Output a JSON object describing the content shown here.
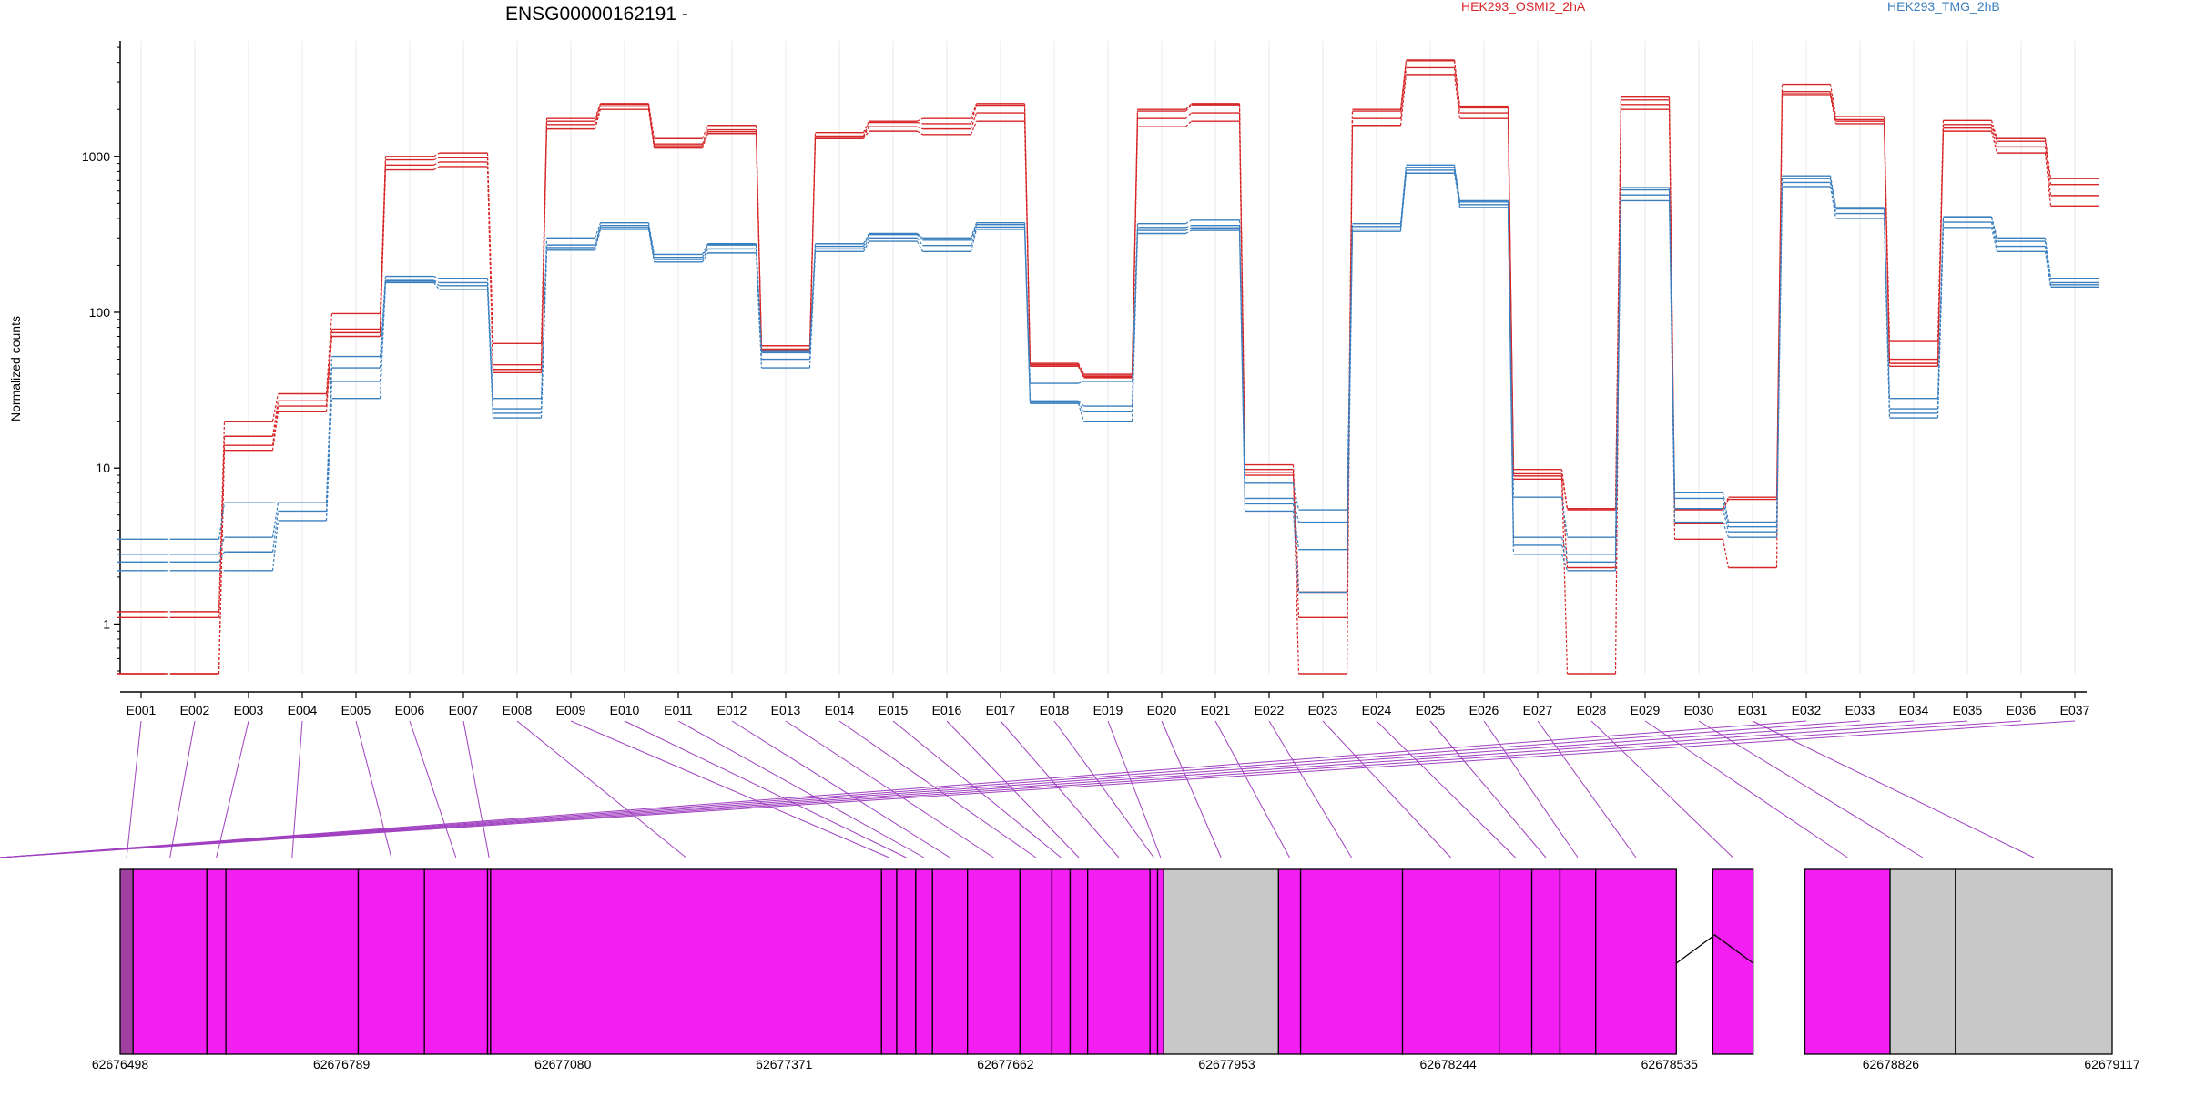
{
  "chart_data": {
    "type": "line",
    "title": "ENSG00000162191 -",
    "ylabel": "Normalized counts",
    "yscale": "log",
    "y_ticks": [
      1,
      10,
      100,
      1000
    ],
    "y_tick_labels": [
      "1",
      "10",
      "100",
      "1000"
    ],
    "ylim": [
      0.48,
      5500
    ],
    "categories": [
      "E001",
      "E002",
      "E003",
      "E004",
      "E005",
      "E006",
      "E007",
      "E008",
      "E009",
      "E010",
      "E011",
      "E012",
      "E013",
      "E014",
      "E015",
      "E016",
      "E017",
      "E018",
      "E019",
      "E020",
      "E021",
      "E022",
      "E023",
      "E024",
      "E025",
      "E026",
      "E027",
      "E028",
      "E029",
      "E030",
      "E031",
      "E032",
      "E033",
      "E034",
      "E035",
      "E036",
      "E037"
    ],
    "legend": [
      {
        "label": "HEK293_OSMI2_2hA",
        "color": "#d62728",
        "position": "top-center"
      },
      {
        "label": "HEK293_TMG_2hB",
        "color": "#3a7fbf",
        "position": "top-right"
      }
    ],
    "series": [
      {
        "group": "red",
        "values": [
          1.2,
          1.2,
          20,
          30,
          98,
          1000,
          1050,
          63,
          1750,
          2180,
          1300,
          1580,
          61,
          1420,
          1680,
          1750,
          2180,
          47,
          40,
          2000,
          2180,
          10.5,
          1.6,
          2000,
          4150,
          2100,
          9.8,
          5.5,
          2400,
          5.5,
          6.5,
          2900,
          1800,
          65,
          1700,
          1300,
          720
        ]
      },
      {
        "group": "red",
        "values": [
          1.1,
          1.1,
          16,
          27,
          78,
          950,
          980,
          46,
          1680,
          2150,
          1200,
          1480,
          58,
          1350,
          1650,
          1620,
          2130,
          45,
          39,
          1950,
          2140,
          9.8,
          1.6,
          1950,
          4100,
          2050,
          9.2,
          5.4,
          2300,
          5.4,
          6.3,
          2600,
          1720,
          50,
          1600,
          1250,
          660
        ]
      },
      {
        "group": "red",
        "values": [
          0.48,
          0.48,
          13,
          23,
          70,
          820,
          860,
          41,
          1500,
          2000,
          1130,
          1400,
          56,
          1300,
          1450,
          1380,
          1680,
          45,
          38,
          1550,
          1680,
          9,
          1.1,
          1580,
          3350,
          1750,
          8.5,
          2.3,
          2000,
          3.5,
          2.3,
          2450,
          1620,
          45,
          1450,
          1050,
          480
        ]
      },
      {
        "group": "red",
        "values": [
          0.48,
          0.48,
          14,
          25,
          74,
          880,
          920,
          43,
          1600,
          2080,
          1170,
          1440,
          57,
          1330,
          1550,
          1500,
          1900,
          46,
          38.5,
          1750,
          1900,
          9.4,
          0.48,
          1750,
          3700,
          1900,
          8.9,
          0.48,
          2150,
          4.4,
          4.5,
          2520,
          1680,
          47,
          1520,
          1150,
          560
        ]
      },
      {
        "group": "blue",
        "values": [
          3.5,
          3.5,
          6,
          6,
          52,
          170,
          165,
          28,
          300,
          375,
          235,
          275,
          56,
          275,
          320,
          300,
          375,
          35,
          36,
          370,
          390,
          8,
          5.4,
          370,
          880,
          520,
          6.5,
          3.6,
          630,
          7,
          4.5,
          750,
          470,
          28,
          410,
          300,
          165
        ]
      },
      {
        "group": "blue",
        "values": [
          2.8,
          2.8,
          3.6,
          6,
          44,
          160,
          155,
          24,
          270,
          360,
          225,
          270,
          55,
          265,
          315,
          290,
          365,
          27,
          25,
          350,
          360,
          6.4,
          4.5,
          355,
          850,
          510,
          3.6,
          2.8,
          610,
          6.4,
          4.2,
          720,
          460,
          24,
          405,
          285,
          155
        ]
      },
      {
        "group": "blue",
        "values": [
          2.2,
          2.2,
          2.2,
          4.6,
          28,
          155,
          140,
          21,
          250,
          340,
          210,
          240,
          44,
          245,
          285,
          245,
          340,
          26,
          20,
          320,
          335,
          5.3,
          1.6,
          330,
          780,
          470,
          2.8,
          2.2,
          520,
          4.5,
          3.6,
          640,
          400,
          21,
          350,
          245,
          145
        ]
      },
      {
        "group": "blue",
        "values": [
          2.5,
          2.5,
          2.9,
          5.3,
          36,
          158,
          148,
          22.5,
          260,
          350,
          218,
          255,
          50,
          255,
          300,
          268,
          352,
          26.5,
          23,
          335,
          348,
          5.9,
          3,
          342,
          815,
          490,
          3.2,
          2.5,
          565,
          5.5,
          3.9,
          680,
          430,
          22.5,
          378,
          265,
          150
        ]
      }
    ],
    "gene_axis": {
      "tick_labels": [
        "62676498",
        "62676789",
        "62677080",
        "62677371",
        "62677662",
        "62677953",
        "62678244",
        "62678535",
        "62678826",
        "62679117"
      ],
      "range": [
        62676498,
        62679117
      ]
    },
    "exons": {
      "start_pos": [
        62676498,
        62676515,
        62676612,
        62676637,
        62676811,
        62676898,
        62676981,
        62676985,
        62677499,
        62677519,
        62677544,
        62677566,
        62677612,
        62677681,
        62677723,
        62677747,
        62677770,
        62677852,
        62677862,
        62677870,
        62678021,
        62678050,
        62678184,
        62678311,
        62678354,
        62678391,
        62678438,
        62678592,
        62678713,
        62678825,
        62678911
      ],
      "end_pos": [
        62676515,
        62676612,
        62676637,
        62676811,
        62676898,
        62676981,
        62676985,
        62677499,
        62677519,
        62677544,
        62677566,
        62677612,
        62677681,
        62677723,
        62677747,
        62677770,
        62677852,
        62677862,
        62677870,
        62678021,
        62678050,
        62678184,
        62678311,
        62678354,
        62678391,
        62678438,
        62678544,
        62678645,
        62678825,
        62678911,
        62679117
      ],
      "kinds": [
        "exon",
        "exon",
        "exon",
        "exon",
        "exon",
        "exon",
        "exon",
        "exon",
        "exon",
        "exon",
        "exon",
        "exon",
        "exon",
        "exon",
        "exon",
        "exon",
        "exon",
        "exon",
        "exon",
        "noncoding",
        "exon",
        "exon",
        "exon",
        "exon",
        "exon",
        "exon",
        "exon",
        "exon",
        "exon",
        "noncoding",
        "noncoding"
      ],
      "intron": {
        "from": 62678544,
        "to": 62678645
      },
      "colors": {
        "exon": "#f21ef2",
        "noncoding": "#c8c8c8",
        "first": "#a040a0"
      },
      "connector_color": "#a040c0"
    }
  }
}
